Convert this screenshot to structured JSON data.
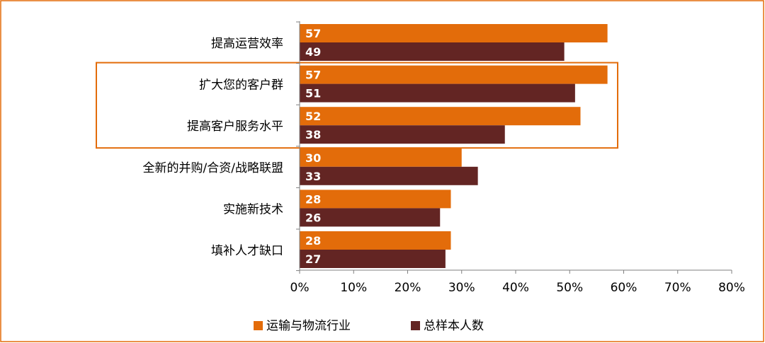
{
  "chart_data": {
    "type": "bar",
    "orientation": "horizontal",
    "categories": [
      "提高运营效率",
      "扩大您的客户群",
      "提高客户服务水平",
      "全新的并购/合资/战略联盟",
      "实施新技术",
      "填补人才缺口"
    ],
    "series": [
      {
        "name": "运输与物流行业",
        "values": [
          57,
          57,
          52,
          30,
          28,
          28
        ],
        "color": "#E36C0A"
      },
      {
        "name": "总样本人数",
        "values": [
          49,
          51,
          38,
          33,
          26,
          27
        ],
        "color": "#632523"
      }
    ],
    "xlim": [
      0,
      80
    ],
    "xticks": [
      0,
      10,
      20,
      30,
      40,
      50,
      60,
      70,
      80
    ],
    "xtick_labels": [
      "0%",
      "10%",
      "20%",
      "30%",
      "40%",
      "50%",
      "60%",
      "70%",
      "80%"
    ],
    "highlighted_categories": [
      "扩大您的客户群",
      "提高客户服务水平"
    ],
    "highlight_color": "#E36C0A",
    "frame_color": "#E36C0A",
    "legend_position": "bottom",
    "grid": false
  }
}
